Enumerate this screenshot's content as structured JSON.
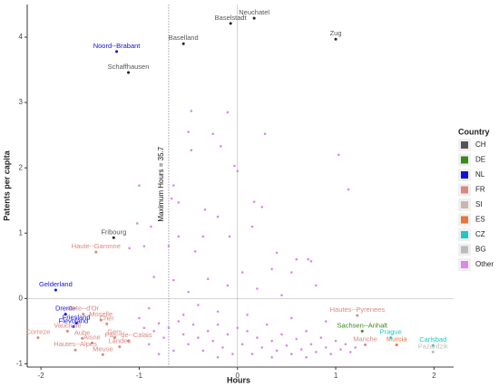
{
  "chart_data": {
    "type": "scatter",
    "x_label": "Hours",
    "y_label": "Patents per capita",
    "xlim": [
      -2.14,
      2.2
    ],
    "ylim": [
      -1.05,
      4.5
    ],
    "xticks": [
      -2,
      -1,
      0,
      1,
      2
    ],
    "yticks": [
      -1,
      0,
      1,
      2,
      3,
      4
    ],
    "legend_title": "Country",
    "legend": "right",
    "vline": -0.7,
    "vline_label": "Maximum Hours = 35.7",
    "series": [
      {
        "name": "CH",
        "color": "#555555",
        "x": [
          0.17,
          -0.07,
          1.0,
          -0.55,
          -1.11,
          -1.26
        ],
        "y": [
          4.29,
          4.21,
          3.97,
          3.9,
          3.46,
          0.93
        ],
        "labels": [
          "Neuchatel",
          "Baselstadt",
          "Zug",
          "Baselland",
          "Schaffhausen",
          "Fribourg"
        ]
      },
      {
        "name": "DE",
        "color": "#3a8a1a",
        "x": [
          1.27
        ],
        "y": [
          -0.5
        ],
        "labels": [
          "Sachsen--Anhalt"
        ]
      },
      {
        "name": "NL",
        "color": "#1010e0",
        "x": [
          -1.23,
          -1.85,
          -1.75,
          -1.67,
          -1.64
        ],
        "y": [
          3.78,
          0.13,
          -0.24,
          -0.43,
          -0.38
        ],
        "labels": [
          "Noord--Brabant",
          "Gelderland",
          "Drente",
          "Flevoland",
          "Friesland"
        ]
      },
      {
        "name": "FR",
        "color": "#d98880",
        "x": [
          -1.44,
          -1.57,
          -1.39,
          -1.33,
          -1.73,
          -1.58,
          -2.03,
          -1.48,
          -1.25,
          -1.11,
          -1.65,
          -1.2,
          -1.37,
          1.22,
          1.3
        ],
        "y": [
          0.71,
          -0.24,
          -0.33,
          -0.39,
          -0.5,
          -0.61,
          -0.6,
          -0.68,
          -0.6,
          -0.65,
          -0.79,
          -0.74,
          -0.86,
          -0.26,
          -0.71
        ],
        "labels": [
          "Haute--Garonne",
          "Cote--d'Or",
          "Moselle",
          "Cher",
          "Vaucluse",
          "Aube",
          "Correze",
          "Aisne",
          "Gers",
          "Pas--de--Calais",
          "Hautes--Alpes",
          "Landes",
          "Meuse",
          "Hautes--Pyrenees",
          "Manche"
        ]
      },
      {
        "name": "SI",
        "color": "#c9b8a8",
        "x": [],
        "y": [],
        "labels": []
      },
      {
        "name": "ES",
        "color": "#e8743b",
        "x": [
          1.62
        ],
        "y": [
          -0.71
        ],
        "labels": [
          "Murcia"
        ]
      },
      {
        "name": "CZ",
        "color": "#1fc8c8",
        "x": [
          1.56,
          1.99
        ],
        "y": [
          -0.6,
          -0.72
        ],
        "labels": [
          "Prague",
          "Carlsbad"
        ]
      },
      {
        "name": "BG",
        "color": "#bbbbbb",
        "x": [
          1.99
        ],
        "y": [
          -0.82
        ],
        "labels": [
          "Pazardzik"
        ]
      },
      {
        "name": "Other",
        "color": "#d98ae8",
        "x": [
          -0.47,
          -0.1,
          -0.5,
          -0.25,
          0.28,
          -0.47,
          -0.17,
          -0.03,
          0.0,
          1.03,
          -0.65,
          -1.0,
          -0.88,
          -1.02,
          -0.6,
          -0.67,
          -0.33,
          0.25,
          0.17,
          1.13,
          -0.2,
          0.15,
          -0.6,
          -0.43,
          -0.35,
          -0.08,
          -1.1,
          -0.95,
          -0.7,
          0.4,
          0.6,
          0.75,
          0.72,
          0.55,
          0.35,
          0.05,
          -0.3,
          -0.65,
          -0.85,
          -0.5,
          -0.1,
          0.2,
          0.8,
          0.45,
          -0.4,
          -0.9,
          -0.2,
          0.1,
          0.55,
          0.9,
          -1.0,
          -0.95,
          -0.85,
          -0.8,
          -0.75,
          -0.7,
          -0.6,
          -0.55,
          -0.5,
          -0.45,
          -0.4,
          -0.35,
          -0.3,
          -0.25,
          -0.2,
          -0.15,
          -0.1,
          -0.05,
          0.0,
          0.05,
          0.1,
          0.15,
          0.2,
          0.25,
          0.3,
          0.35,
          0.4,
          0.45,
          0.5,
          0.55,
          0.6,
          0.65,
          0.7,
          0.75,
          0.8,
          0.85,
          0.9,
          0.95,
          1.0,
          1.05,
          1.1,
          1.15,
          1.2,
          -0.9,
          -0.65,
          -0.8,
          -0.55,
          -0.2,
          0.35,
          0.7
        ],
        "y": [
          2.87,
          2.85,
          2.55,
          2.52,
          2.52,
          2.27,
          2.33,
          2.03,
          1.95,
          2.2,
          1.73,
          1.73,
          1.1,
          1.15,
          1.47,
          1.53,
          1.36,
          1.4,
          1.48,
          1.67,
          1.25,
          1.1,
          0.95,
          0.72,
          0.95,
          0.95,
          0.77,
          0.8,
          0.8,
          0.7,
          0.6,
          0.57,
          0.6,
          0.4,
          0.45,
          0.4,
          0.3,
          0.28,
          0.33,
          0.1,
          0.2,
          0.15,
          0.2,
          0.05,
          -0.1,
          -0.15,
          -0.2,
          -0.25,
          -0.3,
          -0.35,
          -0.3,
          -0.45,
          -0.5,
          -0.38,
          -0.6,
          -0.45,
          -0.35,
          -0.55,
          -0.7,
          -0.4,
          -0.6,
          -0.8,
          -0.5,
          -0.65,
          -0.4,
          -0.75,
          -0.55,
          -0.85,
          -0.45,
          -0.7,
          -0.5,
          -0.85,
          -0.6,
          -0.75,
          -0.4,
          -0.65,
          -0.8,
          -0.55,
          -0.72,
          -0.85,
          -0.62,
          -0.78,
          -0.5,
          -0.7,
          -0.82,
          -0.6,
          -0.75,
          -0.85,
          -0.65,
          -0.78,
          -0.7,
          -0.82,
          -0.75,
          -0.7,
          -0.8,
          -0.85,
          -0.25,
          -0.9,
          -0.9,
          -0.9
        ]
      }
    ]
  }
}
